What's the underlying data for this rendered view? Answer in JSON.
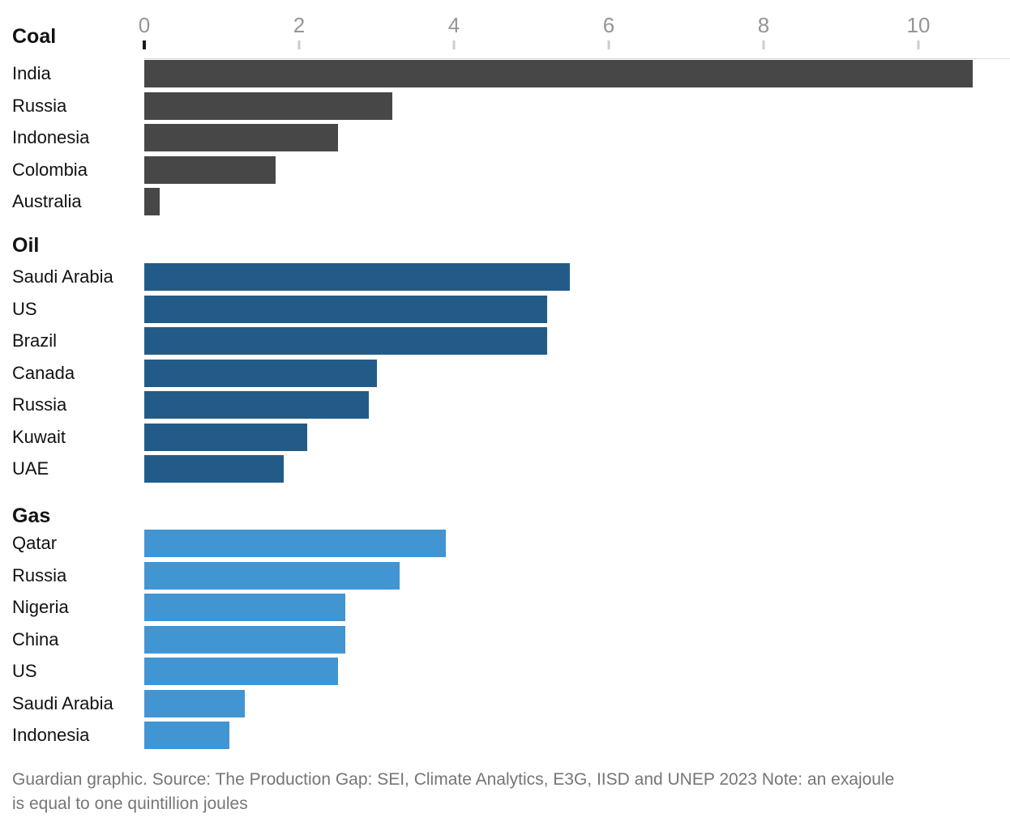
{
  "chart_data": {
    "type": "bar",
    "orientation": "horizontal",
    "value_unit": "exajoules",
    "axis": {
      "position": "top",
      "ticks": [
        0,
        2,
        4,
        6,
        8,
        10
      ],
      "xlim": [
        0,
        11.2
      ],
      "grid": false
    },
    "sections": [
      {
        "label": "Coal",
        "color": "#474747",
        "bars": [
          {
            "label": "India",
            "value": 10.7
          },
          {
            "label": "Russia",
            "value": 3.2
          },
          {
            "label": "Indonesia",
            "value": 2.5
          },
          {
            "label": "Colombia",
            "value": 1.7
          },
          {
            "label": "Australia",
            "value": 0.2
          }
        ]
      },
      {
        "label": "Oil",
        "color": "#235b88",
        "bars": [
          {
            "label": "Saudi Arabia",
            "value": 5.5
          },
          {
            "label": "US",
            "value": 5.2
          },
          {
            "label": "Brazil",
            "value": 5.2
          },
          {
            "label": "Canada",
            "value": 3.0
          },
          {
            "label": "Russia",
            "value": 2.9
          },
          {
            "label": "Kuwait",
            "value": 2.1
          },
          {
            "label": "UAE",
            "value": 1.8
          }
        ]
      },
      {
        "label": "Gas",
        "color": "#4195d3",
        "bars": [
          {
            "label": "Qatar",
            "value": 3.9
          },
          {
            "label": "Russia",
            "value": 3.3
          },
          {
            "label": "Nigeria",
            "value": 2.6
          },
          {
            "label": "China",
            "value": 2.6
          },
          {
            "label": "US",
            "value": 2.5
          },
          {
            "label": "Saudi Arabia",
            "value": 1.3
          },
          {
            "label": "Indonesia",
            "value": 1.1
          }
        ]
      }
    ]
  },
  "footer": {
    "text": "Guardian graphic. Source: The Production Gap: SEI, Climate Analytics, E3G, IISD and UNEP 2023 Note: an exajoule is equal to one quintillion joules"
  },
  "colors": {
    "coal_bar": "#474747",
    "oil_bar": "#235b88",
    "gas_bar": "#4195d3",
    "label_text": "#121212",
    "axis_number": "#959595",
    "tick_zero": "#1a1a1a",
    "tick_light": "#cdcdcd",
    "axis_rule": "#d9d9d9",
    "footer_text": "#767676",
    "background": "#ffffff"
  }
}
